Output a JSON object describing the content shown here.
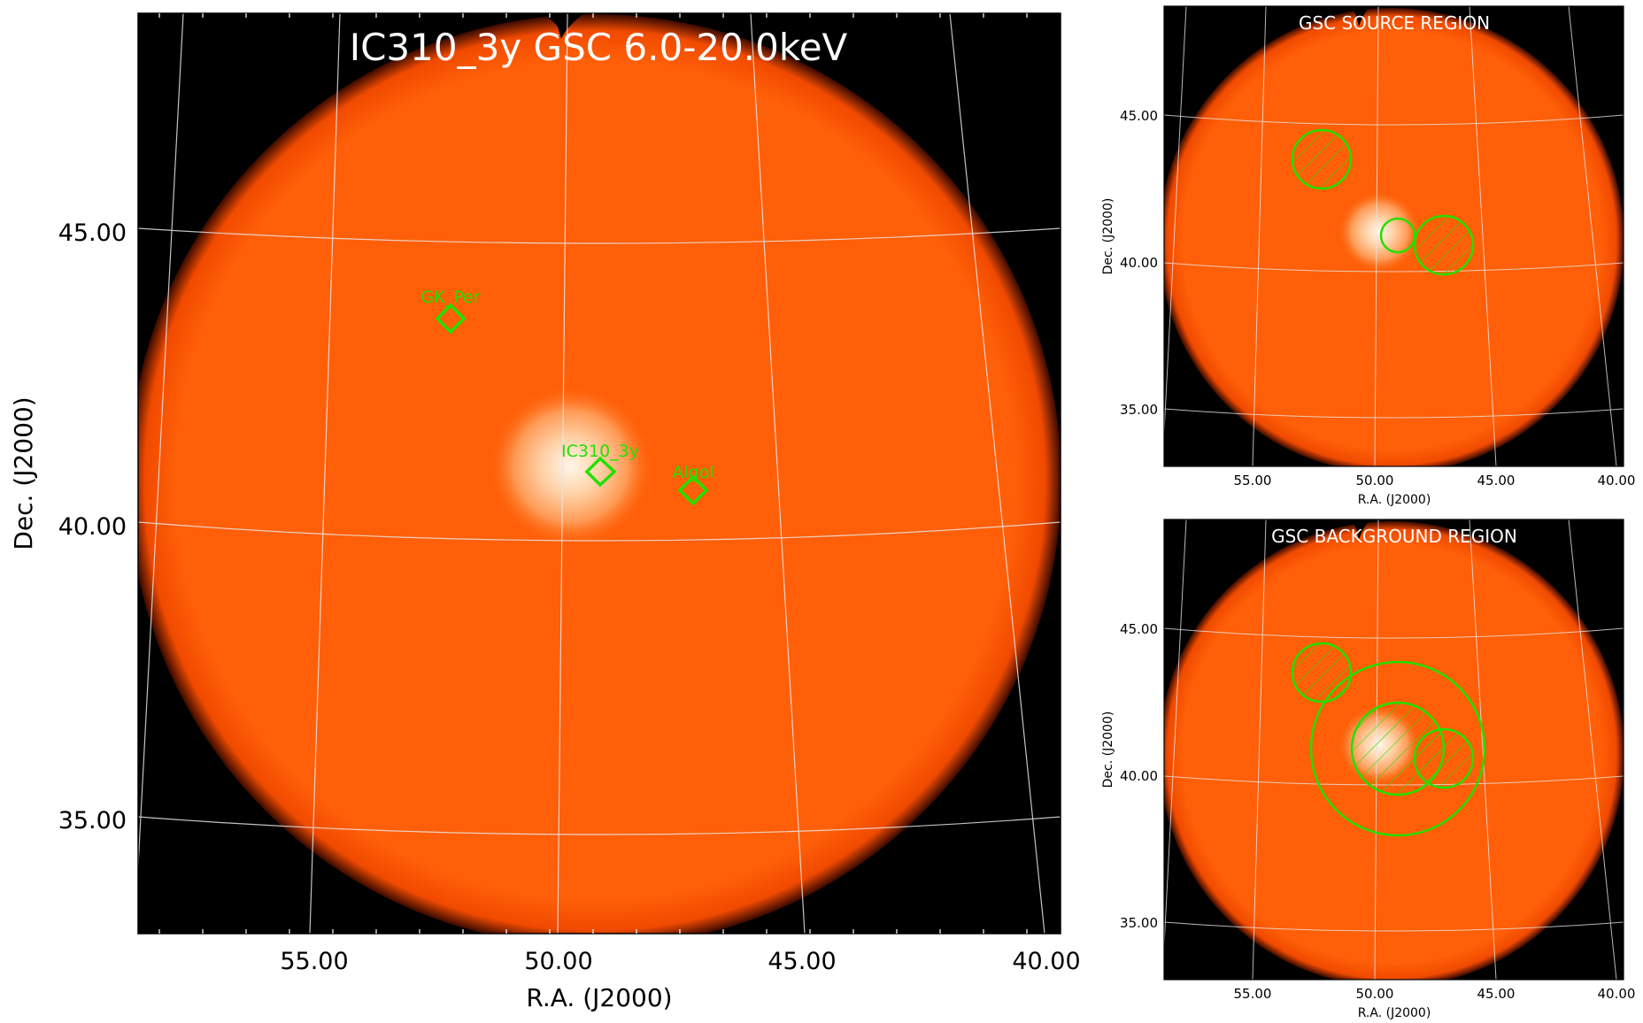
{
  "colors": {
    "background": "#ffffff",
    "sky_black": "#000000",
    "disc_orange": "#ff5a00",
    "disc_core": "#ffe8d0",
    "grid": "#e6e6e6",
    "marker_green": "#22e000",
    "title_white": "#ffffff",
    "axis_text": "#000000"
  },
  "main_panel": {
    "title": "IC310_3y GSC 6.0-20.0keV",
    "xlabel": "R.A. (J2000)",
    "ylabel": "Dec. (J2000)",
    "x_ticks": [
      "55.00",
      "50.00",
      "45.00",
      "40.00"
    ],
    "y_ticks": [
      "45.00",
      "40.00",
      "35.00"
    ],
    "sources": [
      {
        "label": "GK_Per",
        "marker": "diamond"
      },
      {
        "label": "IC310_3y",
        "marker": "diamond"
      },
      {
        "label": "Algol",
        "marker": "diamond"
      }
    ]
  },
  "source_panel": {
    "title": "GSC SOURCE REGION",
    "xlabel": "R.A. (J2000)",
    "ylabel": "Dec. (J2000)",
    "x_ticks": [
      "55.00",
      "50.00",
      "45.00",
      "40.00"
    ],
    "y_ticks": [
      "45.00",
      "40.00",
      "35.00"
    ],
    "regions": [
      "source-circle",
      "excluded-circle",
      "excluded-circle"
    ]
  },
  "background_panel": {
    "title": "GSC BACKGROUND REGION",
    "xlabel": "R.A. (J2000)",
    "ylabel": "Dec. (J2000)",
    "x_ticks": [
      "55.00",
      "50.00",
      "45.00",
      "40.00"
    ],
    "y_ticks": [
      "45.00",
      "40.00",
      "35.00"
    ],
    "regions": [
      "background-annulus",
      "excluded-circle",
      "excluded-circle",
      "excluded-circle"
    ]
  }
}
